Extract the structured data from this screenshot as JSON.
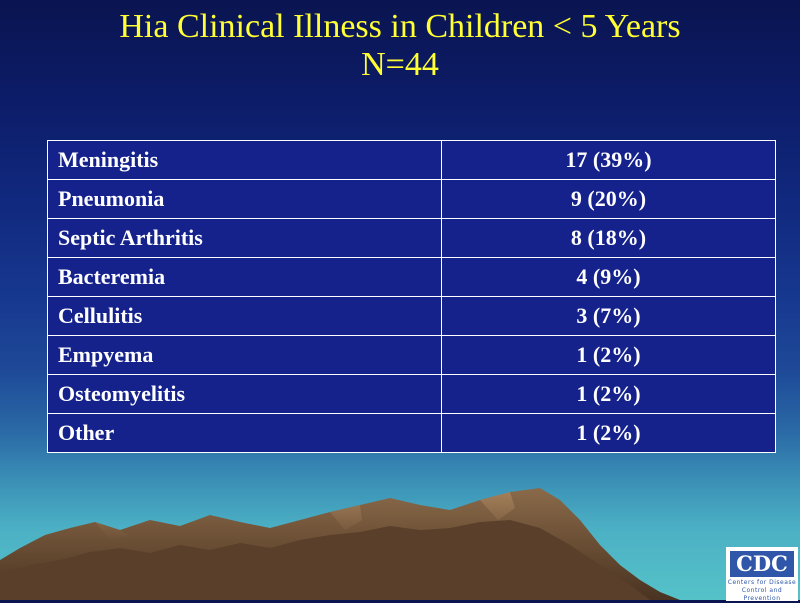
{
  "slide": {
    "title_line1": "Hia Clinical Illness in Children < 5 Years",
    "title_line2": "N=44"
  },
  "table": {
    "rows": [
      {
        "label": "Meningitis",
        "value": "17 (39%)"
      },
      {
        "label": "Pneumonia",
        "value": "9 (20%)"
      },
      {
        "label": "Septic Arthritis",
        "value": "8 (18%)"
      },
      {
        "label": "Bacteremia",
        "value": "4 (9%)"
      },
      {
        "label": "Cellulitis",
        "value": "3 (7%)"
      },
      {
        "label": "Empyema",
        "value": "1 (2%)"
      },
      {
        "label": "Osteomyelitis",
        "value": "1 (2%)"
      },
      {
        "label": "Other",
        "value": "1 (2%)"
      }
    ]
  },
  "logo": {
    "mark": "CDC",
    "line1": "Centers for Disease",
    "line2": "Control and Prevention"
  },
  "colors": {
    "title": "#ffff33",
    "table_bg": "#15228c",
    "table_text": "#ffffff"
  }
}
